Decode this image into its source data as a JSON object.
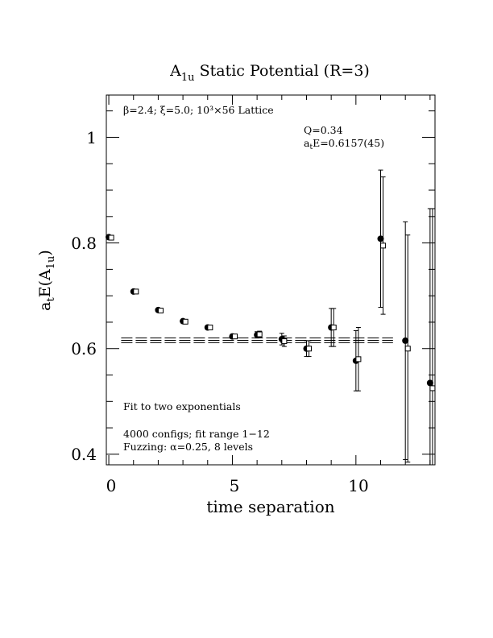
{
  "chart_data": {
    "type": "scatter",
    "title": "A1u Static Potential (R=3)",
    "title_parts": {
      "main": "A",
      "sub": "1u",
      "rest": " Static Potential (R=3)"
    },
    "xlabel": "time separation",
    "ylabel_parts": {
      "a": "a",
      "t": "t",
      "E": "E(A",
      "sub": "1u",
      "close": ")"
    },
    "xlim": [
      -0.1,
      13.2
    ],
    "ylim": [
      0.38,
      1.08
    ],
    "x_ticks": [
      0,
      5,
      10
    ],
    "y_ticks": [
      0.4,
      0.6,
      0.8,
      1
    ],
    "x_tick_labels": [
      "0",
      "5",
      "10"
    ],
    "y_tick_labels": [
      "0.4",
      "0.6",
      "0.8",
      "1"
    ],
    "annotations": {
      "lattice": "β=2.4; ξ=5.0; 10³×56 Lattice",
      "q": "Q=0.34",
      "energy_prefix": "a",
      "energy_sub": "t",
      "energy_rest": "E=0.6157(45)",
      "fit": "Fit to two exponentials",
      "configs": "4000 configs; fit range 1−12",
      "fuzzing": "Fuzzing: α=0.25, 8 levels"
    },
    "series": [
      {
        "marker": "filled-circle",
        "x": [
          0,
          1,
          2,
          3,
          4,
          5,
          6,
          7,
          8,
          9,
          10,
          11,
          12,
          13
        ],
        "y": [
          0.811,
          0.708,
          0.673,
          0.652,
          0.64,
          0.623,
          0.626,
          0.618,
          0.6,
          0.64,
          0.577,
          0.808,
          0.615,
          0.535
        ],
        "err": [
          0.002,
          0.002,
          0.002,
          0.003,
          0.003,
          0.004,
          0.006,
          0.011,
          0.015,
          0.036,
          0.057,
          0.13,
          0.225,
          0.33
        ]
      },
      {
        "marker": "open-square",
        "x": [
          0.1,
          1.1,
          2.1,
          3.1,
          4.1,
          5.1,
          6.1,
          7.1,
          8.1,
          9.1,
          10.1,
          11.1,
          12.1,
          13.1
        ],
        "y": [
          0.81,
          0.708,
          0.672,
          0.651,
          0.64,
          0.623,
          0.627,
          0.614,
          0.6,
          0.64,
          0.58,
          0.795,
          0.6,
          0.525
        ],
        "err": [
          0.002,
          0.002,
          0.002,
          0.003,
          0.003,
          0.004,
          0.006,
          0.01,
          0.015,
          0.036,
          0.06,
          0.13,
          0.215,
          0.34
        ]
      }
    ],
    "fit": {
      "value": 0.6157,
      "error": 0.0045,
      "x_range": [
        0.5,
        11.5
      ]
    }
  }
}
